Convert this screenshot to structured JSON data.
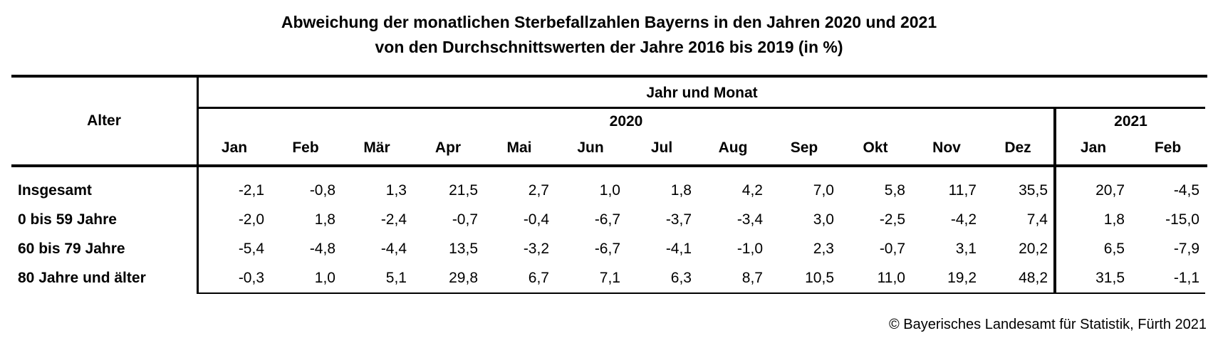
{
  "title": {
    "line1": "Abweichung der monatlichen Sterbefallzahlen Bayerns in den Jahren 2020 und 2021",
    "line2": "von den Durchschnittswerten der Jahre 2016 bis 2019 (in %)"
  },
  "table": {
    "corner_label": "Alter",
    "group_header": "Jahr und Monat",
    "year_groups": [
      {
        "label": "2020",
        "months": [
          "Jan",
          "Feb",
          "Mär",
          "Apr",
          "Mai",
          "Jun",
          "Jul",
          "Aug",
          "Sep",
          "Okt",
          "Nov",
          "Dez"
        ]
      },
      {
        "label": "2021",
        "months": [
          "Jan",
          "Feb"
        ]
      }
    ],
    "rows": [
      {
        "label": "Insgesamt",
        "values": [
          "-2,1",
          "-0,8",
          "1,3",
          "21,5",
          "2,7",
          "1,0",
          "1,8",
          "4,2",
          "7,0",
          "5,8",
          "11,7",
          "35,5",
          "20,7",
          "-4,5"
        ]
      },
      {
        "label": "0 bis 59 Jahre",
        "values": [
          "-2,0",
          "1,8",
          "-2,4",
          "-0,7",
          "-0,4",
          "-6,7",
          "-3,7",
          "-3,4",
          "3,0",
          "-2,5",
          "-4,2",
          "7,4",
          "1,8",
          "-15,0"
        ]
      },
      {
        "label": "60 bis 79 Jahre",
        "values": [
          "-5,4",
          "-4,8",
          "-4,4",
          "13,5",
          "-3,2",
          "-6,7",
          "-4,1",
          "-1,0",
          "2,3",
          "-0,7",
          "3,1",
          "20,2",
          "6,5",
          "-7,9"
        ]
      },
      {
        "label": "80 Jahre und älter",
        "values": [
          "-0,3",
          "1,0",
          "5,1",
          "29,8",
          "6,7",
          "7,1",
          "6,3",
          "8,7",
          "10,5",
          "11,0",
          "19,2",
          "48,2",
          "31,5",
          "-1,1"
        ]
      }
    ]
  },
  "footer": {
    "copyright": "© Bayerisches Landesamt für Statistik, Fürth 2021"
  },
  "colors": {
    "text": "#000000",
    "background": "#ffffff",
    "border": "#000000"
  },
  "chart_data": {
    "type": "table",
    "title": "Abweichung der monatlichen Sterbefallzahlen Bayerns in den Jahren 2020 und 2021 von den Durchschnittswerten der Jahre 2016 bis 2019 (in %)",
    "row_dimension": "Alter",
    "column_dimension": "Jahr und Monat",
    "columns": [
      "2020 Jan",
      "2020 Feb",
      "2020 Mär",
      "2020 Apr",
      "2020 Mai",
      "2020 Jun",
      "2020 Jul",
      "2020 Aug",
      "2020 Sep",
      "2020 Okt",
      "2020 Nov",
      "2020 Dez",
      "2021 Jan",
      "2021 Feb"
    ],
    "rows": [
      {
        "label": "Insgesamt",
        "values": [
          -2.1,
          -0.8,
          1.3,
          21.5,
          2.7,
          1.0,
          1.8,
          4.2,
          7.0,
          5.8,
          11.7,
          35.5,
          20.7,
          -4.5
        ]
      },
      {
        "label": "0 bis 59 Jahre",
        "values": [
          -2.0,
          1.8,
          -2.4,
          -0.7,
          -0.4,
          -6.7,
          -3.7,
          -3.4,
          3.0,
          -2.5,
          -4.2,
          7.4,
          1.8,
          -15.0
        ]
      },
      {
        "label": "60 bis 79 Jahre",
        "values": [
          -5.4,
          -4.8,
          -4.4,
          13.5,
          -3.2,
          -6.7,
          -4.1,
          -1.0,
          2.3,
          -0.7,
          3.1,
          20.2,
          6.5,
          -7.9
        ]
      },
      {
        "label": "80 Jahre und älter",
        "values": [
          -0.3,
          1.0,
          5.1,
          29.8,
          6.7,
          7.1,
          6.3,
          8.7,
          10.5,
          11.0,
          19.2,
          48.2,
          31.5,
          -1.1
        ]
      }
    ],
    "unit": "%",
    "source": "© Bayerisches Landesamt für Statistik, Fürth 2021"
  }
}
